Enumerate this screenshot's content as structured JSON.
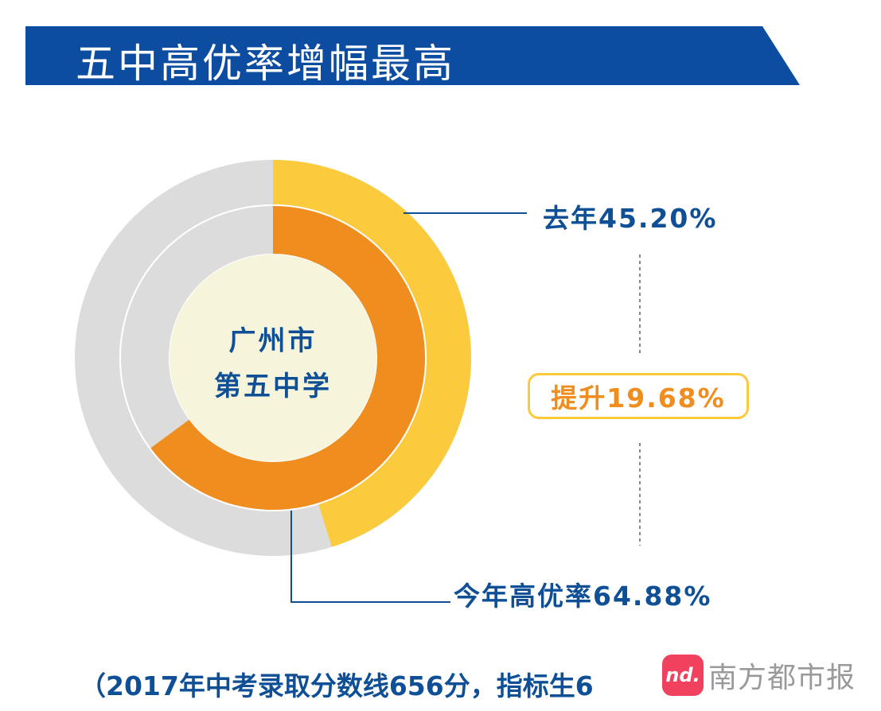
{
  "header": {
    "title": "五中高优率增幅最高"
  },
  "chart_data": {
    "type": "pie",
    "subtype": "nested-donut",
    "center_label": [
      "广州市",
      "第五中学"
    ],
    "rings": [
      {
        "ring": "outer",
        "value_percent": 45.2,
        "label": "去年45.20%"
      },
      {
        "ring": "inner",
        "value_percent": 64.88,
        "label": "今年高优率64.88%"
      }
    ],
    "increase_label": "提升19.68%",
    "increase_value_percent": 19.68
  },
  "colors": {
    "banner": "#0c4da2",
    "outer_ring": "#fbcb3d",
    "inner_ring": "#ef8d1e",
    "track": "#dcdcdc",
    "center": "#f7f4dc",
    "text_blue": "#0f4f96",
    "accent_orange": "#ef8d1e"
  },
  "footer": {
    "note": "（2017年中考录取分数线656分，指标生6"
  },
  "watermark": {
    "logo_text": "nd.",
    "text": "南方都市报"
  }
}
